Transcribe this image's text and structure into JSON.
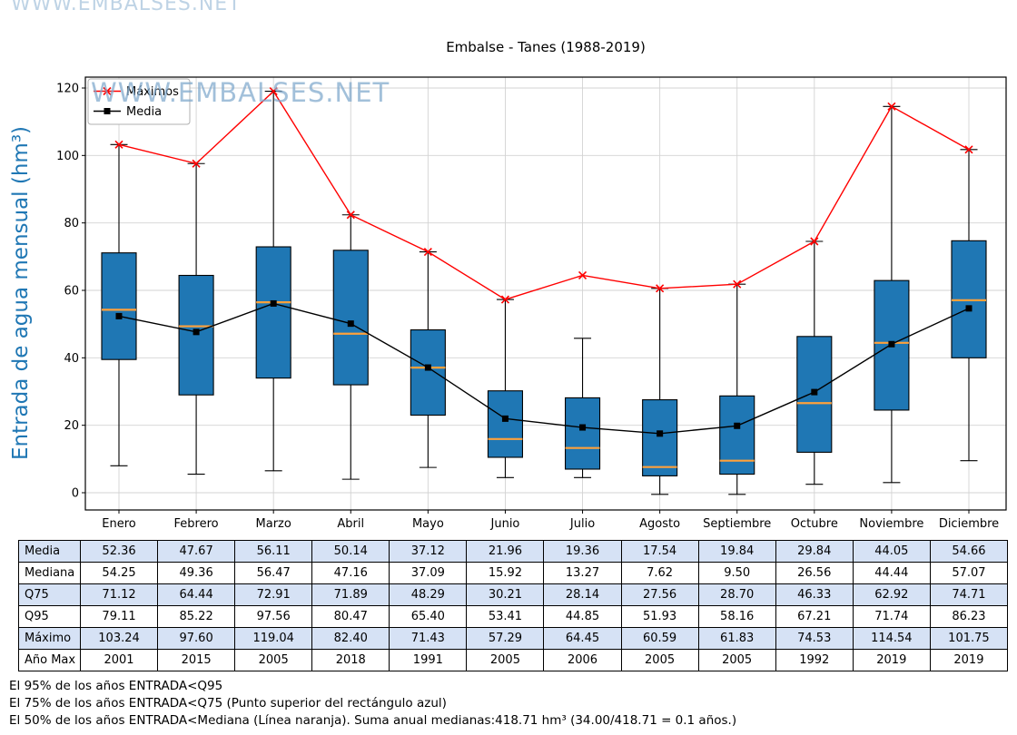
{
  "title": "Embalse - Tanes (1988-2019)",
  "watermark": "WWW.EMBALSES.NET",
  "y_axis_label": "Entrada de agua mensual (hm³)",
  "legend": {
    "maximos": "Máximos",
    "media": "Media"
  },
  "colors": {
    "box_fill": "#1f77b4",
    "median_line": "#ffa13b",
    "max_line": "#ff0000",
    "mean_line": "#000000",
    "axis_label": "#1f77b4",
    "watermark": "#7fa8cc",
    "table_row_alt": "#d6e2f5"
  },
  "chart_data": {
    "type": "boxplot",
    "title": "Embalse - Tanes (1988-2019)",
    "ylabel": "Entrada de agua mensual (hm³)",
    "categories": [
      "Enero",
      "Febrero",
      "Marzo",
      "Abril",
      "Mayo",
      "Junio",
      "Julio",
      "Agosto",
      "Septiembre",
      "Octubre",
      "Noviembre",
      "Diciembre"
    ],
    "yticks": [
      0,
      20,
      40,
      60,
      80,
      100,
      120
    ],
    "ylim": [
      -5,
      123
    ],
    "grid": true,
    "legend_position": "upper-left",
    "series": {
      "media": [
        52.36,
        47.67,
        56.11,
        50.14,
        37.12,
        21.96,
        19.36,
        17.54,
        19.84,
        29.84,
        44.05,
        54.66
      ],
      "mediana": [
        54.25,
        49.36,
        56.47,
        47.16,
        37.09,
        15.92,
        13.27,
        7.62,
        9.5,
        26.56,
        44.44,
        57.07
      ],
      "q25_est": [
        39.5,
        29.0,
        34.0,
        32.0,
        23.0,
        10.5,
        7.0,
        5.0,
        5.5,
        12.0,
        24.5,
        40.0
      ],
      "q75": [
        71.12,
        64.44,
        72.91,
        71.89,
        48.29,
        30.21,
        28.14,
        27.56,
        28.7,
        46.33,
        62.92,
        74.71
      ],
      "q95": [
        79.11,
        85.22,
        97.56,
        80.47,
        65.4,
        53.41,
        44.85,
        51.93,
        58.16,
        67.21,
        71.74,
        86.23
      ],
      "whisker_low_est": [
        8.0,
        5.5,
        6.5,
        4.0,
        7.5,
        4.5,
        4.5,
        -0.5,
        -0.5,
        2.5,
        3.0,
        9.5
      ],
      "whisker_high_est": [
        103.24,
        97.6,
        119.04,
        82.4,
        71.43,
        57.29,
        45.8,
        60.59,
        61.83,
        74.53,
        114.54,
        101.75
      ],
      "maximo": [
        103.24,
        97.6,
        119.04,
        82.4,
        71.43,
        57.29,
        64.45,
        60.59,
        61.83,
        74.53,
        114.54,
        101.75
      ],
      "ano_max": [
        2001,
        2015,
        2005,
        2018,
        1991,
        2005,
        2006,
        2005,
        2005,
        1992,
        2019,
        2019
      ]
    }
  },
  "table": {
    "rows": [
      {
        "label": "Media",
        "values": [
          "52.36",
          "47.67",
          "56.11",
          "50.14",
          "37.12",
          "21.96",
          "19.36",
          "17.54",
          "19.84",
          "29.84",
          "44.05",
          "54.66"
        ]
      },
      {
        "label": "Mediana",
        "values": [
          "54.25",
          "49.36",
          "56.47",
          "47.16",
          "37.09",
          "15.92",
          "13.27",
          "7.62",
          "9.50",
          "26.56",
          "44.44",
          "57.07"
        ]
      },
      {
        "label": "Q75",
        "values": [
          "71.12",
          "64.44",
          "72.91",
          "71.89",
          "48.29",
          "30.21",
          "28.14",
          "27.56",
          "28.70",
          "46.33",
          "62.92",
          "74.71"
        ]
      },
      {
        "label": "Q95",
        "values": [
          "79.11",
          "85.22",
          "97.56",
          "80.47",
          "65.40",
          "53.41",
          "44.85",
          "51.93",
          "58.16",
          "67.21",
          "71.74",
          "86.23"
        ]
      },
      {
        "label": "Máximo",
        "values": [
          "103.24",
          "97.60",
          "119.04",
          "82.40",
          "71.43",
          "57.29",
          "64.45",
          "60.59",
          "61.83",
          "74.53",
          "114.54",
          "101.75"
        ]
      },
      {
        "label": "Año Max",
        "values": [
          "2001",
          "2015",
          "2005",
          "2018",
          "1991",
          "2005",
          "2006",
          "2005",
          "2005",
          "1992",
          "2019",
          "2019"
        ]
      }
    ]
  },
  "footnotes": [
    "El 95% de los años ENTRADA<Q95",
    "El 75% de los años ENTRADA<Q75 (Punto superior del rectángulo azul)",
    "El 50% de los años ENTRADA<Mediana (Línea naranja). Suma anual medianas:418.71 hm³ (34.00/418.71 = 0.1 años.)"
  ]
}
